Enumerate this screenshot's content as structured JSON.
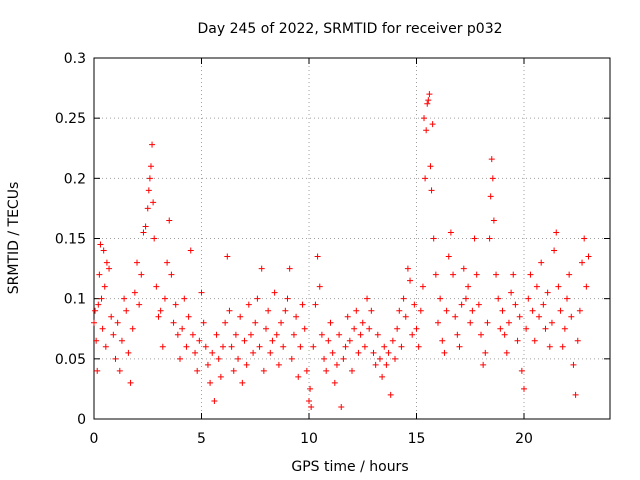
{
  "chart_data": {
    "type": "scatter",
    "title": "Day 245 of 2022, SRMTID for receiver p032",
    "xlabel": "GPS time / hours",
    "ylabel": "SRMTID / TECUs",
    "xlim": [
      0,
      24
    ],
    "ylim": [
      0,
      0.3
    ],
    "xticks": [
      0,
      5,
      10,
      15,
      20
    ],
    "xtick_labels": [
      "0",
      "5",
      "10",
      "15",
      "20"
    ],
    "yticks": [
      0,
      0.05,
      0.1,
      0.15,
      0.2,
      0.25,
      0.3
    ],
    "ytick_labels": [
      "0",
      "0.05",
      "0.1",
      "0.15",
      "0.2",
      "0.25",
      "0.3"
    ],
    "grid": true,
    "marker": "plus",
    "color": "#ff0000",
    "series": [
      {
        "name": "SRMTID",
        "points": [
          [
            0.0,
            0.08
          ],
          [
            0.05,
            0.09
          ],
          [
            0.1,
            0.065
          ],
          [
            0.15,
            0.04
          ],
          [
            0.2,
            0.095
          ],
          [
            0.25,
            0.12
          ],
          [
            0.3,
            0.145
          ],
          [
            0.35,
            0.1
          ],
          [
            0.4,
            0.075
          ],
          [
            0.45,
            0.14
          ],
          [
            0.5,
            0.11
          ],
          [
            0.55,
            0.06
          ],
          [
            0.6,
            0.13
          ],
          [
            0.7,
            0.125
          ],
          [
            0.8,
            0.085
          ],
          [
            0.9,
            0.07
          ],
          [
            1.0,
            0.05
          ],
          [
            1.1,
            0.08
          ],
          [
            1.2,
            0.04
          ],
          [
            1.3,
            0.065
          ],
          [
            1.4,
            0.1
          ],
          [
            1.5,
            0.09
          ],
          [
            1.6,
            0.055
          ],
          [
            1.7,
            0.03
          ],
          [
            1.8,
            0.075
          ],
          [
            1.9,
            0.105
          ],
          [
            2.0,
            0.13
          ],
          [
            2.1,
            0.095
          ],
          [
            2.2,
            0.12
          ],
          [
            2.3,
            0.155
          ],
          [
            2.4,
            0.16
          ],
          [
            2.5,
            0.175
          ],
          [
            2.55,
            0.19
          ],
          [
            2.6,
            0.2
          ],
          [
            2.65,
            0.21
          ],
          [
            2.7,
            0.228
          ],
          [
            2.75,
            0.18
          ],
          [
            2.8,
            0.15
          ],
          [
            2.9,
            0.11
          ],
          [
            3.0,
            0.085
          ],
          [
            3.1,
            0.09
          ],
          [
            3.2,
            0.06
          ],
          [
            3.3,
            0.1
          ],
          [
            3.4,
            0.13
          ],
          [
            3.5,
            0.165
          ],
          [
            3.6,
            0.12
          ],
          [
            3.7,
            0.08
          ],
          [
            3.8,
            0.095
          ],
          [
            3.9,
            0.07
          ],
          [
            4.0,
            0.05
          ],
          [
            4.1,
            0.075
          ],
          [
            4.2,
            0.1
          ],
          [
            4.3,
            0.06
          ],
          [
            4.4,
            0.085
          ],
          [
            4.5,
            0.14
          ],
          [
            4.6,
            0.07
          ],
          [
            4.7,
            0.055
          ],
          [
            4.8,
            0.04
          ],
          [
            4.9,
            0.065
          ],
          [
            5.0,
            0.105
          ],
          [
            5.1,
            0.08
          ],
          [
            5.2,
            0.06
          ],
          [
            5.3,
            0.045
          ],
          [
            5.4,
            0.03
          ],
          [
            5.5,
            0.055
          ],
          [
            5.6,
            0.015
          ],
          [
            5.7,
            0.07
          ],
          [
            5.8,
            0.05
          ],
          [
            5.9,
            0.035
          ],
          [
            6.0,
            0.06
          ],
          [
            6.1,
            0.08
          ],
          [
            6.2,
            0.135
          ],
          [
            6.3,
            0.09
          ],
          [
            6.4,
            0.06
          ],
          [
            6.5,
            0.04
          ],
          [
            6.6,
            0.07
          ],
          [
            6.7,
            0.05
          ],
          [
            6.8,
            0.085
          ],
          [
            6.9,
            0.03
          ],
          [
            7.0,
            0.065
          ],
          [
            7.1,
            0.045
          ],
          [
            7.2,
            0.095
          ],
          [
            7.3,
            0.07
          ],
          [
            7.4,
            0.055
          ],
          [
            7.5,
            0.08
          ],
          [
            7.6,
            0.1
          ],
          [
            7.7,
            0.06
          ],
          [
            7.8,
            0.125
          ],
          [
            7.9,
            0.04
          ],
          [
            8.0,
            0.075
          ],
          [
            8.1,
            0.09
          ],
          [
            8.2,
            0.055
          ],
          [
            8.3,
            0.065
          ],
          [
            8.4,
            0.105
          ],
          [
            8.5,
            0.07
          ],
          [
            8.6,
            0.045
          ],
          [
            8.7,
            0.08
          ],
          [
            8.8,
            0.06
          ],
          [
            8.9,
            0.09
          ],
          [
            9.0,
            0.1
          ],
          [
            9.1,
            0.125
          ],
          [
            9.2,
            0.05
          ],
          [
            9.3,
            0.07
          ],
          [
            9.4,
            0.085
          ],
          [
            9.5,
            0.035
          ],
          [
            9.6,
            0.06
          ],
          [
            9.7,
            0.095
          ],
          [
            9.8,
            0.075
          ],
          [
            9.9,
            0.04
          ],
          [
            10.0,
            0.015
          ],
          [
            10.05,
            0.025
          ],
          [
            10.1,
            0.01
          ],
          [
            10.2,
            0.06
          ],
          [
            10.3,
            0.095
          ],
          [
            10.4,
            0.135
          ],
          [
            10.5,
            0.11
          ],
          [
            10.6,
            0.07
          ],
          [
            10.7,
            0.05
          ],
          [
            10.8,
            0.04
          ],
          [
            10.9,
            0.065
          ],
          [
            11.0,
            0.08
          ],
          [
            11.1,
            0.055
          ],
          [
            11.2,
            0.03
          ],
          [
            11.3,
            0.045
          ],
          [
            11.4,
            0.07
          ],
          [
            11.5,
            0.01
          ],
          [
            11.6,
            0.05
          ],
          [
            11.7,
            0.06
          ],
          [
            11.8,
            0.085
          ],
          [
            11.9,
            0.065
          ],
          [
            12.0,
            0.04
          ],
          [
            12.1,
            0.075
          ],
          [
            12.2,
            0.09
          ],
          [
            12.3,
            0.055
          ],
          [
            12.4,
            0.07
          ],
          [
            12.5,
            0.08
          ],
          [
            12.6,
            0.06
          ],
          [
            12.7,
            0.1
          ],
          [
            12.8,
            0.075
          ],
          [
            12.9,
            0.09
          ],
          [
            13.0,
            0.055
          ],
          [
            13.1,
            0.045
          ],
          [
            13.2,
            0.07
          ],
          [
            13.3,
            0.05
          ],
          [
            13.4,
            0.035
          ],
          [
            13.5,
            0.06
          ],
          [
            13.6,
            0.045
          ],
          [
            13.7,
            0.055
          ],
          [
            13.8,
            0.02
          ],
          [
            13.9,
            0.065
          ],
          [
            14.0,
            0.05
          ],
          [
            14.1,
            0.075
          ],
          [
            14.2,
            0.09
          ],
          [
            14.3,
            0.06
          ],
          [
            14.4,
            0.1
          ],
          [
            14.5,
            0.085
          ],
          [
            14.6,
            0.125
          ],
          [
            14.7,
            0.115
          ],
          [
            14.8,
            0.07
          ],
          [
            14.9,
            0.095
          ],
          [
            15.0,
            0.075
          ],
          [
            15.1,
            0.06
          ],
          [
            15.2,
            0.09
          ],
          [
            15.3,
            0.11
          ],
          [
            15.35,
            0.25
          ],
          [
            15.4,
            0.2
          ],
          [
            15.45,
            0.24
          ],
          [
            15.5,
            0.262
          ],
          [
            15.55,
            0.265
          ],
          [
            15.6,
            0.27
          ],
          [
            15.65,
            0.21
          ],
          [
            15.7,
            0.19
          ],
          [
            15.75,
            0.245
          ],
          [
            15.8,
            0.15
          ],
          [
            15.9,
            0.12
          ],
          [
            16.0,
            0.08
          ],
          [
            16.1,
            0.1
          ],
          [
            16.2,
            0.065
          ],
          [
            16.3,
            0.055
          ],
          [
            16.4,
            0.09
          ],
          [
            16.5,
            0.135
          ],
          [
            16.6,
            0.155
          ],
          [
            16.7,
            0.12
          ],
          [
            16.8,
            0.085
          ],
          [
            16.9,
            0.07
          ],
          [
            17.0,
            0.06
          ],
          [
            17.1,
            0.095
          ],
          [
            17.2,
            0.125
          ],
          [
            17.3,
            0.1
          ],
          [
            17.4,
            0.11
          ],
          [
            17.5,
            0.08
          ],
          [
            17.6,
            0.09
          ],
          [
            17.7,
            0.15
          ],
          [
            17.8,
            0.12
          ],
          [
            17.9,
            0.095
          ],
          [
            18.0,
            0.07
          ],
          [
            18.1,
            0.045
          ],
          [
            18.2,
            0.055
          ],
          [
            18.3,
            0.08
          ],
          [
            18.4,
            0.15
          ],
          [
            18.45,
            0.185
          ],
          [
            18.5,
            0.216
          ],
          [
            18.55,
            0.2
          ],
          [
            18.6,
            0.165
          ],
          [
            18.7,
            0.12
          ],
          [
            18.8,
            0.1
          ],
          [
            18.9,
            0.075
          ],
          [
            19.0,
            0.09
          ],
          [
            19.1,
            0.07
          ],
          [
            19.2,
            0.055
          ],
          [
            19.3,
            0.08
          ],
          [
            19.4,
            0.105
          ],
          [
            19.5,
            0.12
          ],
          [
            19.6,
            0.095
          ],
          [
            19.7,
            0.065
          ],
          [
            19.8,
            0.085
          ],
          [
            19.9,
            0.04
          ],
          [
            20.0,
            0.025
          ],
          [
            20.1,
            0.075
          ],
          [
            20.2,
            0.1
          ],
          [
            20.3,
            0.12
          ],
          [
            20.4,
            0.09
          ],
          [
            20.5,
            0.065
          ],
          [
            20.6,
            0.11
          ],
          [
            20.7,
            0.085
          ],
          [
            20.8,
            0.13
          ],
          [
            20.9,
            0.095
          ],
          [
            21.0,
            0.075
          ],
          [
            21.1,
            0.105
          ],
          [
            21.2,
            0.06
          ],
          [
            21.3,
            0.08
          ],
          [
            21.4,
            0.14
          ],
          [
            21.5,
            0.155
          ],
          [
            21.6,
            0.11
          ],
          [
            21.7,
            0.09
          ],
          [
            21.8,
            0.06
          ],
          [
            21.9,
            0.075
          ],
          [
            22.0,
            0.1
          ],
          [
            22.1,
            0.12
          ],
          [
            22.2,
            0.085
          ],
          [
            22.3,
            0.045
          ],
          [
            22.4,
            0.02
          ],
          [
            22.5,
            0.065
          ],
          [
            22.6,
            0.09
          ],
          [
            22.7,
            0.13
          ],
          [
            22.8,
            0.15
          ],
          [
            22.9,
            0.11
          ],
          [
            23.0,
            0.135
          ]
        ]
      }
    ]
  }
}
